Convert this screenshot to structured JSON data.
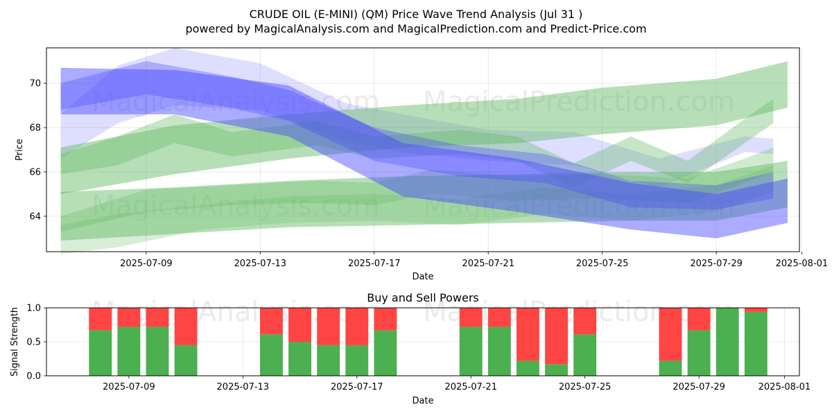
{
  "title": "CRUDE OIL (E-MINI) (QM) Price Wave Trend Analysis (Jul 31 )",
  "subtitle": "powered by MagicalAnalysis.com and MagicalPrediction.com and Predict-Price.com",
  "watermarks": [
    "MagicalAnalysis.com",
    "MagicalPrediction.com",
    "MagicalAnalysis.com",
    "MagicalPrediction.com",
    "MagicalAnalysis.com",
    "MagicalPrediction.com"
  ],
  "colors": {
    "green": "#4caf50",
    "red": "#ff4444",
    "blue": "#4444ff",
    "green_band": "#5fb85f"
  },
  "chart_data": [
    {
      "type": "area",
      "title": "",
      "xlabel": "Date",
      "ylabel": "Price",
      "xlim": [
        "2025-07-05T12:00",
        "2025-07-31T22:00"
      ],
      "ylim": [
        62.4,
        71.6
      ],
      "x_ticks": [
        "2025-07-09",
        "2025-07-13",
        "2025-07-17",
        "2025-07-21",
        "2025-07-25",
        "2025-07-29",
        "2025-08-01"
      ],
      "y_ticks": [
        64,
        66,
        68,
        70
      ],
      "series": [
        {
          "name": "blue-band-1",
          "color": "#4444ff",
          "opacity": 0.45,
          "x": [
            "2025-07-06",
            "2025-07-10",
            "2025-07-14",
            "2025-07-18",
            "2025-07-22",
            "2025-07-26",
            "2025-07-29",
            "2025-07-31T12:00"
          ],
          "upper": [
            70.7,
            70.6,
            69.9,
            67.3,
            66.6,
            65.5,
            65.0,
            65.7
          ],
          "lower": [
            68.6,
            68.6,
            67.6,
            64.9,
            64.2,
            63.4,
            63.0,
            63.7
          ]
        },
        {
          "name": "blue-band-2",
          "color": "#4444ff",
          "opacity": 0.32,
          "x": [
            "2025-07-06",
            "2025-07-09",
            "2025-07-12",
            "2025-07-14",
            "2025-07-17",
            "2025-07-20",
            "2025-07-23",
            "2025-07-26",
            "2025-07-29",
            "2025-07-31"
          ],
          "upper": [
            70.0,
            71.0,
            70.3,
            69.7,
            68.0,
            67.2,
            66.8,
            65.6,
            65.4,
            66.0
          ],
          "lower": [
            68.8,
            69.5,
            68.9,
            68.3,
            66.5,
            65.8,
            65.5,
            64.4,
            64.3,
            64.8
          ]
        },
        {
          "name": "blue-band-3",
          "color": "#6a6aff",
          "opacity": 0.22,
          "x": [
            "2025-07-06",
            "2025-07-08",
            "2025-07-10",
            "2025-07-13",
            "2025-07-16",
            "2025-07-18",
            "2025-07-21",
            "2025-07-24",
            "2025-07-27",
            "2025-07-30",
            "2025-07-31"
          ],
          "upper": [
            68.6,
            70.8,
            71.6,
            70.9,
            69.1,
            68.6,
            67.9,
            67.8,
            66.6,
            67.6,
            67.5
          ],
          "lower": [
            66.6,
            68.2,
            69.0,
            68.8,
            67.4,
            66.9,
            66.5,
            66.3,
            65.3,
            66.9,
            66.8
          ]
        },
        {
          "name": "green-band-1",
          "color": "#5fb85f",
          "opacity": 0.45,
          "x": [
            "2025-07-06",
            "2025-07-10",
            "2025-07-14",
            "2025-07-18",
            "2025-07-22",
            "2025-07-25",
            "2025-07-29",
            "2025-07-31T12:00"
          ],
          "upper": [
            67.1,
            68.1,
            68.6,
            69.0,
            69.3,
            69.8,
            70.2,
            71.0
          ],
          "lower": [
            65.0,
            65.9,
            66.6,
            67.1,
            67.3,
            67.7,
            68.1,
            68.9
          ]
        },
        {
          "name": "green-band-2",
          "color": "#5fb85f",
          "opacity": 0.45,
          "x": [
            "2025-07-06",
            "2025-07-10",
            "2025-07-14",
            "2025-07-18",
            "2025-07-22",
            "2025-07-26",
            "2025-07-29",
            "2025-07-31T12:00"
          ],
          "upper": [
            65.1,
            65.3,
            65.6,
            65.8,
            65.9,
            66.0,
            66.0,
            66.5
          ],
          "lower": [
            62.9,
            63.2,
            63.5,
            63.6,
            63.7,
            63.8,
            63.8,
            64.4
          ]
        },
        {
          "name": "green-band-3",
          "color": "#5fb85f",
          "opacity": 0.35,
          "x": [
            "2025-07-06",
            "2025-07-08",
            "2025-07-10",
            "2025-07-12",
            "2025-07-15",
            "2025-07-17",
            "2025-07-20",
            "2025-07-22",
            "2025-07-24",
            "2025-07-26",
            "2025-07-28",
            "2025-07-30",
            "2025-07-31"
          ],
          "upper": [
            66.8,
            67.6,
            68.6,
            67.8,
            68.3,
            67.6,
            67.9,
            67.6,
            66.4,
            67.6,
            66.5,
            68.4,
            69.3
          ],
          "lower": [
            65.9,
            66.3,
            67.3,
            66.7,
            67.2,
            66.6,
            66.8,
            66.5,
            65.3,
            66.5,
            65.5,
            67.3,
            68.2
          ]
        },
        {
          "name": "green-band-4",
          "color": "#5fb85f",
          "opacity": 0.3,
          "x": [
            "2025-07-06",
            "2025-07-09",
            "2025-07-12",
            "2025-07-15",
            "2025-07-17",
            "2025-07-19",
            "2025-07-22",
            "2025-07-25",
            "2025-07-28",
            "2025-07-30",
            "2025-07-31"
          ],
          "upper": [
            64.0,
            65.2,
            65.4,
            65.6,
            65.5,
            66.1,
            65.8,
            65.9,
            65.7,
            66.6,
            67.1
          ],
          "lower": [
            63.3,
            64.2,
            64.5,
            64.6,
            64.5,
            65.0,
            64.7,
            64.8,
            64.6,
            65.5,
            66.0
          ]
        },
        {
          "name": "green-band-5",
          "color": "#5fb85f",
          "opacity": 0.25,
          "x": [
            "2025-07-06",
            "2025-07-08",
            "2025-07-11",
            "2025-07-14",
            "2025-07-17",
            "2025-07-20",
            "2025-07-23",
            "2025-07-26",
            "2025-07-29",
            "2025-07-31"
          ],
          "upper": [
            63.6,
            64.1,
            64.5,
            64.9,
            65.0,
            64.8,
            65.3,
            65.0,
            65.4,
            66.3
          ],
          "lower": [
            62.3,
            62.6,
            63.4,
            63.7,
            63.8,
            63.6,
            64.1,
            63.8,
            64.2,
            65.1
          ]
        }
      ]
    },
    {
      "type": "bar",
      "title": "Buy and Sell Powers",
      "xlabel": "Date",
      "ylabel": "Signal Strength",
      "ylim": [
        0,
        1
      ],
      "y_ticks": [
        "0.0",
        "0.5",
        "1.0"
      ],
      "x_ticks": [
        "2025-07-09",
        "2025-07-13",
        "2025-07-17",
        "2025-07-21",
        "2025-07-25",
        "2025-07-29",
        "2025-08-01"
      ],
      "categories": [
        "2025-07-08",
        "2025-07-09",
        "2025-07-10",
        "2025-07-11",
        "2025-07-14",
        "2025-07-15",
        "2025-07-16",
        "2025-07-17",
        "2025-07-18",
        "2025-07-21",
        "2025-07-22",
        "2025-07-23",
        "2025-07-24",
        "2025-07-25",
        "2025-07-28",
        "2025-07-29",
        "2025-07-30",
        "2025-07-31"
      ],
      "series": [
        {
          "name": "Buy",
          "color": "#4caf50",
          "values": [
            0.67,
            0.72,
            0.72,
            0.45,
            0.61,
            0.5,
            0.45,
            0.45,
            0.67,
            0.72,
            0.72,
            0.22,
            0.17,
            0.61,
            0.22,
            0.67,
            1.0,
            0.94
          ]
        },
        {
          "name": "Sell",
          "color": "#ff4444",
          "values": [
            0.33,
            0.28,
            0.28,
            0.55,
            0.39,
            0.5,
            0.55,
            0.55,
            0.33,
            0.28,
            0.28,
            0.78,
            0.83,
            0.39,
            0.78,
            0.33,
            0.0,
            0.06
          ]
        }
      ]
    }
  ]
}
